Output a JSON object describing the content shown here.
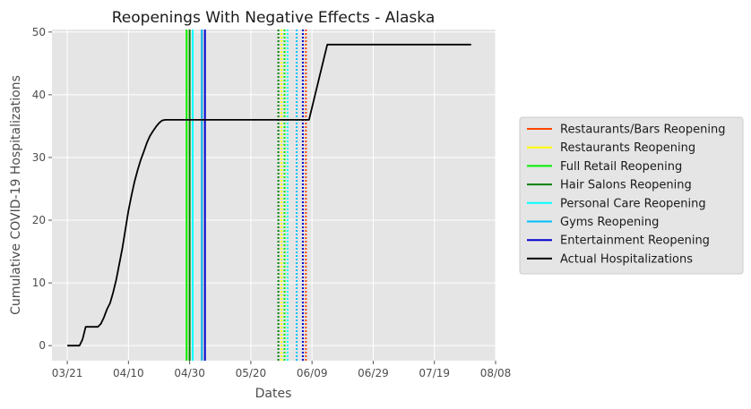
{
  "chart_data": {
    "type": "line",
    "title": "Reopenings With Negative Effects - Alaska",
    "xlabel": "Dates",
    "ylabel": "Cumulative COVID-19 Hospitalizations",
    "x_ticks": [
      "03/21",
      "04/10",
      "04/30",
      "05/20",
      "06/09",
      "06/29",
      "07/19",
      "08/08"
    ],
    "y_ticks": [
      0,
      10,
      20,
      30,
      40,
      50
    ],
    "xlim": [
      "2020-03-16",
      "2020-08-08"
    ],
    "ylim": [
      -2.4,
      50.4
    ],
    "grid": true,
    "legend_position": "center-right outside",
    "series": [
      {
        "name": "Actual Hospitalizations",
        "color": "#000000",
        "points": [
          [
            "2020-03-21",
            0
          ],
          [
            "2020-03-23",
            0
          ],
          [
            "2020-03-25",
            0
          ],
          [
            "2020-03-26",
            1
          ],
          [
            "2020-03-27",
            3
          ],
          [
            "2020-03-30",
            3
          ],
          [
            "2020-03-31",
            3
          ],
          [
            "2020-04-01",
            3.5
          ],
          [
            "2020-04-02",
            4.5
          ],
          [
            "2020-04-03",
            5.8
          ],
          [
            "2020-04-04",
            6.8
          ],
          [
            "2020-04-05",
            8.5
          ],
          [
            "2020-04-06",
            10.5
          ],
          [
            "2020-04-07",
            13
          ],
          [
            "2020-04-08",
            15.5
          ],
          [
            "2020-04-09",
            18.5
          ],
          [
            "2020-04-10",
            21.5
          ],
          [
            "2020-04-11",
            24
          ],
          [
            "2020-04-12",
            26.2
          ],
          [
            "2020-04-13",
            28
          ],
          [
            "2020-04-14",
            29.6
          ],
          [
            "2020-04-15",
            30.9
          ],
          [
            "2020-04-16",
            32.3
          ],
          [
            "2020-04-17",
            33.4
          ],
          [
            "2020-04-18",
            34.2
          ],
          [
            "2020-04-19",
            34.9
          ],
          [
            "2020-04-20",
            35.5
          ],
          [
            "2020-04-21",
            35.9
          ],
          [
            "2020-04-22",
            36
          ],
          [
            "2020-05-01",
            36
          ],
          [
            "2020-05-15",
            36
          ],
          [
            "2020-06-01",
            36
          ],
          [
            "2020-06-08",
            36
          ],
          [
            "2020-06-09",
            38
          ],
          [
            "2020-06-13",
            46
          ],
          [
            "2020-06-14",
            48
          ],
          [
            "2020-06-20",
            48
          ],
          [
            "2020-07-10",
            48
          ],
          [
            "2020-07-31",
            48
          ]
        ]
      }
    ],
    "reopenings": [
      {
        "name": "Restaurants/Bars Reopening",
        "color": "#ff4500",
        "date": "2020-05-04",
        "style": "solid"
      },
      {
        "name": "Restaurants Reopening",
        "color": "#ffff00",
        "date": "2020-04-29",
        "style": "solid"
      },
      {
        "name": "Full Retail Reopening",
        "color": "#00ee00",
        "date": "2020-04-29",
        "style": "solid"
      },
      {
        "name": "Hair Salons Reopening",
        "color": "#008000",
        "date": "2020-04-30",
        "style": "solid"
      },
      {
        "name": "Personal Care Reopening",
        "color": "#00ffff",
        "date": "2020-05-01",
        "style": "solid"
      },
      {
        "name": "Gyms Reopening",
        "color": "#00bfff",
        "date": "2020-05-04",
        "style": "solid"
      },
      {
        "name": "Entertainment Reopening",
        "color": "#0000cd",
        "date": "2020-05-05",
        "style": "solid"
      }
    ],
    "dotted_lines": [
      {
        "color": "#008000",
        "date": "2020-05-29"
      },
      {
        "color": "#ffff00",
        "date": "2020-05-30"
      },
      {
        "color": "#00ee00",
        "date": "2020-05-31"
      },
      {
        "color": "#00ffff",
        "date": "2020-06-01"
      },
      {
        "color": "#00bfff",
        "date": "2020-06-04"
      },
      {
        "color": "#0000cd",
        "date": "2020-06-06"
      },
      {
        "color": "#ff4500",
        "date": "2020-06-07"
      }
    ],
    "legend_order": [
      "Restaurants/Bars Reopening",
      "Restaurants Reopening",
      "Full Retail Reopening",
      "Hair Salons Reopening",
      "Personal Care Reopening",
      "Gyms Reopening",
      "Entertainment Reopening",
      "Actual Hospitalizations"
    ],
    "colors": {
      "plot_bg": "#e5e5e5",
      "grid": "#ffffff",
      "text": "#4d4d4d"
    }
  }
}
